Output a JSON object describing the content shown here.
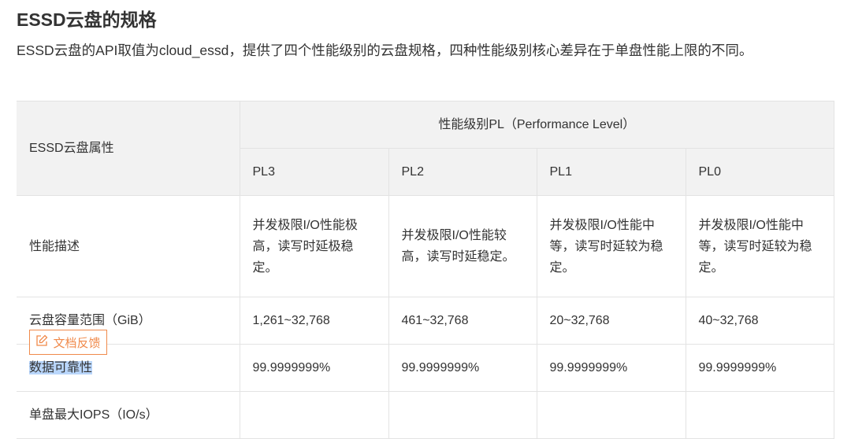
{
  "heading": "ESSD云盘的规格",
  "intro": "ESSD云盘的API取值为cloud_essd，提供了四个性能级别的云盘规格，四种性能级别核心差异在于单盘性能上限的不同。",
  "table": {
    "attr_header": "ESSD云盘属性",
    "group_header": "性能级别PL（Performance Level）",
    "levels": [
      "PL3",
      "PL2",
      "PL1",
      "PL0"
    ],
    "rows": [
      {
        "label": "性能描述",
        "values": [
          "并发极限I/O性能极高，读写时延极稳定。",
          "并发极限I/O性能较高，读写时延稳定。",
          "并发极限I/O性能中等，读写时延较为稳定。",
          "并发极限I/O性能中等，读写时延较为稳定。"
        ]
      },
      {
        "label": "云盘容量范围（GiB）",
        "values": [
          "1,261~32,768",
          "461~32,768",
          "20~32,768",
          "40~32,768"
        ]
      },
      {
        "label": "数据可靠性",
        "values": [
          "99.9999999%",
          "99.9999999%",
          "99.9999999%",
          "99.9999999%"
        ]
      },
      {
        "label": "单盘最大IOPS（IO/s）",
        "values": [
          "",
          "",
          "",
          ""
        ]
      }
    ]
  },
  "feedback": {
    "label": "文档反馈",
    "icon": "edit-icon",
    "color": "#f08a4b"
  },
  "selection_color": "#b9d6fb"
}
